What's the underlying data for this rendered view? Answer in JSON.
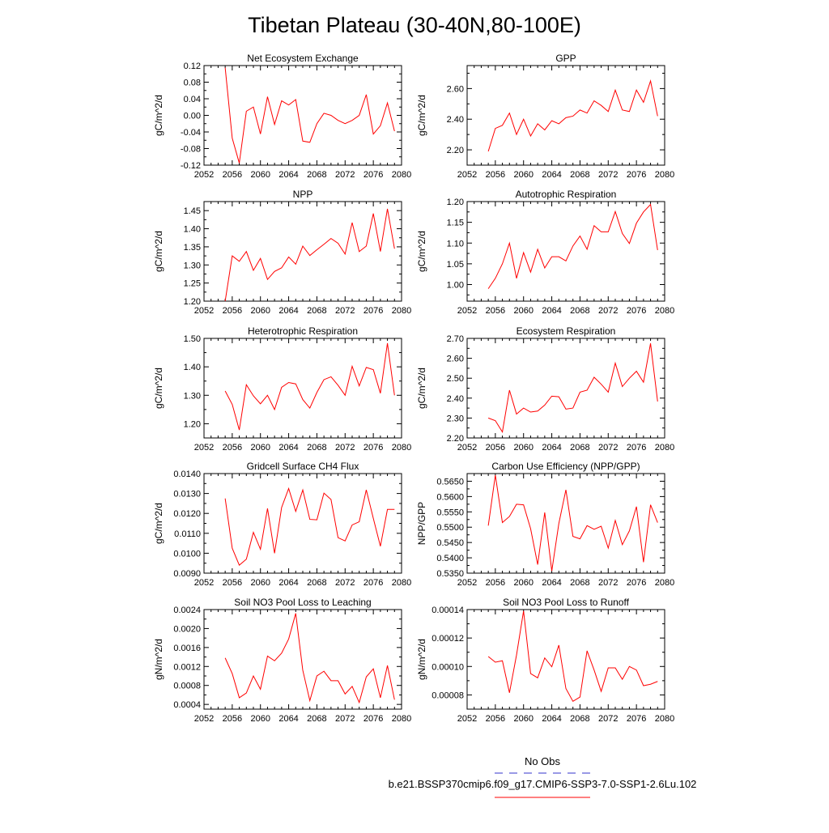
{
  "page": {
    "title": "Tibetan Plateau (30-40N,80-100E)"
  },
  "legend": {
    "entries": [
      {
        "label": "No Obs",
        "color": "#3333cc",
        "dash": "dashed"
      },
      {
        "label": "b.e21.BSSP370cmip6.f09_g17.CMIP6-SSP3-7.0-SSP1-2.6Lu.102",
        "color": "#ff0000",
        "dash": "solid"
      }
    ]
  },
  "chart_data": [
    {
      "type": "line",
      "title": "Net Ecosystem Exchange",
      "ylabel": "gC/m^2/d",
      "xlabel": "",
      "xlim": [
        2052,
        2080
      ],
      "ylim": [
        -0.12,
        0.12
      ],
      "xticks": [
        2052,
        2056,
        2060,
        2064,
        2068,
        2072,
        2076,
        2080
      ],
      "yticks": [
        -0.12,
        -0.08,
        -0.04,
        0.0,
        0.04,
        0.08,
        0.12
      ],
      "ytick_labels": [
        "-0.12",
        "-0.08",
        "-0.04",
        "0.00",
        "0.04",
        "0.08",
        "0.12"
      ],
      "series": [
        {
          "color": "#ff0000",
          "x": [
            2055,
            2056,
            2057,
            2058,
            2059,
            2060,
            2061,
            2062,
            2063,
            2064,
            2065,
            2066,
            2067,
            2068,
            2069,
            2070,
            2071,
            2072,
            2073,
            2074,
            2075,
            2076,
            2077,
            2078,
            2079
          ],
          "values": [
            0.115,
            -0.055,
            -0.115,
            0.01,
            0.02,
            -0.045,
            0.045,
            -0.022,
            0.035,
            0.025,
            0.038,
            -0.062,
            -0.065,
            -0.02,
            0.005,
            0.0,
            -0.012,
            -0.02,
            -0.012,
            0.0,
            0.05,
            -0.045,
            -0.025,
            0.03,
            -0.038
          ]
        }
      ]
    },
    {
      "type": "line",
      "title": "GPP",
      "ylabel": "gC/m^2/d",
      "xlabel": "",
      "xlim": [
        2052,
        2080
      ],
      "ylim": [
        2.1,
        2.75
      ],
      "xticks": [
        2052,
        2056,
        2060,
        2064,
        2068,
        2072,
        2076,
        2080
      ],
      "yticks": [
        2.2,
        2.4,
        2.6
      ],
      "ytick_labels": [
        "2.20",
        "2.40",
        "2.60"
      ],
      "series": [
        {
          "color": "#ff0000",
          "x": [
            2055,
            2056,
            2057,
            2058,
            2059,
            2060,
            2061,
            2062,
            2063,
            2064,
            2065,
            2066,
            2067,
            2068,
            2069,
            2070,
            2071,
            2072,
            2073,
            2074,
            2075,
            2076,
            2077,
            2078,
            2079
          ],
          "values": [
            2.19,
            2.34,
            2.36,
            2.44,
            2.3,
            2.4,
            2.29,
            2.37,
            2.33,
            2.39,
            2.37,
            2.41,
            2.42,
            2.46,
            2.44,
            2.52,
            2.49,
            2.45,
            2.59,
            2.46,
            2.45,
            2.59,
            2.51,
            2.65,
            2.42
          ]
        }
      ]
    },
    {
      "type": "line",
      "title": "NPP",
      "ylabel": "gC/m^2/d",
      "xlabel": "",
      "xlim": [
        2052,
        2080
      ],
      "ylim": [
        1.2,
        1.475
      ],
      "xticks": [
        2052,
        2056,
        2060,
        2064,
        2068,
        2072,
        2076,
        2080
      ],
      "yticks": [
        1.2,
        1.25,
        1.3,
        1.35,
        1.4,
        1.45
      ],
      "ytick_labels": [
        "1.20",
        "1.25",
        "1.30",
        "1.35",
        "1.40",
        "1.45"
      ],
      "series": [
        {
          "color": "#ff0000",
          "x": [
            2055,
            2056,
            2057,
            2058,
            2059,
            2060,
            2061,
            2062,
            2063,
            2064,
            2065,
            2066,
            2067,
            2068,
            2069,
            2070,
            2071,
            2072,
            2073,
            2074,
            2075,
            2076,
            2077,
            2078,
            2079
          ],
          "values": [
            1.2,
            1.325,
            1.31,
            1.337,
            1.285,
            1.318,
            1.26,
            1.282,
            1.292,
            1.322,
            1.302,
            1.352,
            1.326,
            1.342,
            1.357,
            1.373,
            1.36,
            1.33,
            1.417,
            1.337,
            1.352,
            1.442,
            1.337,
            1.455,
            1.345
          ]
        }
      ]
    },
    {
      "type": "line",
      "title": "Autotrophic Respiration",
      "ylabel": "gC/m^2/d",
      "xlabel": "",
      "xlim": [
        2052,
        2080
      ],
      "ylim": [
        0.96,
        1.2
      ],
      "xticks": [
        2052,
        2056,
        2060,
        2064,
        2068,
        2072,
        2076,
        2080
      ],
      "yticks": [
        1.0,
        1.05,
        1.1,
        1.15,
        1.2
      ],
      "ytick_labels": [
        "1.00",
        "1.05",
        "1.10",
        "1.15",
        "1.20"
      ],
      "series": [
        {
          "color": "#ff0000",
          "x": [
            2055,
            2056,
            2057,
            2058,
            2059,
            2060,
            2061,
            2062,
            2063,
            2064,
            2065,
            2066,
            2067,
            2068,
            2069,
            2070,
            2071,
            2072,
            2073,
            2074,
            2075,
            2076,
            2077,
            2078,
            2079
          ],
          "values": [
            0.99,
            1.015,
            1.05,
            1.1,
            1.015,
            1.077,
            1.03,
            1.085,
            1.04,
            1.067,
            1.067,
            1.057,
            1.093,
            1.117,
            1.085,
            1.142,
            1.127,
            1.127,
            1.176,
            1.123,
            1.099,
            1.148,
            1.175,
            1.193,
            1.083
          ]
        }
      ]
    },
    {
      "type": "line",
      "title": "Heterotrophic Respiration",
      "ylabel": "gC/m^2/d",
      "xlabel": "",
      "xlim": [
        2052,
        2080
      ],
      "ylim": [
        1.15,
        1.5
      ],
      "xticks": [
        2052,
        2056,
        2060,
        2064,
        2068,
        2072,
        2076,
        2080
      ],
      "yticks": [
        1.2,
        1.3,
        1.4,
        1.5
      ],
      "ytick_labels": [
        "1.20",
        "1.30",
        "1.40",
        "1.50"
      ],
      "series": [
        {
          "color": "#ff0000",
          "x": [
            2055,
            2056,
            2057,
            2058,
            2059,
            2060,
            2061,
            2062,
            2063,
            2064,
            2065,
            2066,
            2067,
            2068,
            2069,
            2070,
            2071,
            2072,
            2073,
            2074,
            2075,
            2076,
            2077,
            2078,
            2079
          ],
          "values": [
            1.315,
            1.268,
            1.178,
            1.337,
            1.298,
            1.27,
            1.3,
            1.25,
            1.328,
            1.345,
            1.34,
            1.285,
            1.255,
            1.31,
            1.355,
            1.365,
            1.335,
            1.3,
            1.402,
            1.333,
            1.398,
            1.39,
            1.307,
            1.483,
            1.3
          ]
        }
      ]
    },
    {
      "type": "line",
      "title": "Ecosystem Respiration",
      "ylabel": "gC/m^2/d",
      "xlabel": "",
      "xlim": [
        2052,
        2080
      ],
      "ylim": [
        2.2,
        2.7
      ],
      "xticks": [
        2052,
        2056,
        2060,
        2064,
        2068,
        2072,
        2076,
        2080
      ],
      "yticks": [
        2.2,
        2.3,
        2.4,
        2.5,
        2.6,
        2.7
      ],
      "ytick_labels": [
        "2.20",
        "2.30",
        "2.40",
        "2.50",
        "2.60",
        "2.70"
      ],
      "series": [
        {
          "color": "#ff0000",
          "x": [
            2055,
            2056,
            2057,
            2058,
            2059,
            2060,
            2061,
            2062,
            2063,
            2064,
            2065,
            2066,
            2067,
            2068,
            2069,
            2070,
            2071,
            2072,
            2073,
            2074,
            2075,
            2076,
            2077,
            2078,
            2079
          ],
          "values": [
            2.3,
            2.287,
            2.23,
            2.44,
            2.32,
            2.35,
            2.33,
            2.335,
            2.365,
            2.41,
            2.407,
            2.345,
            2.35,
            2.43,
            2.44,
            2.505,
            2.47,
            2.43,
            2.576,
            2.458,
            2.5,
            2.535,
            2.48,
            2.675,
            2.383
          ]
        }
      ]
    },
    {
      "type": "line",
      "title": "Gridcell Surface CH4 Flux",
      "ylabel": "gC/m^2/d",
      "xlabel": "",
      "xlim": [
        2052,
        2080
      ],
      "ylim": [
        0.009,
        0.014
      ],
      "xticks": [
        2052,
        2056,
        2060,
        2064,
        2068,
        2072,
        2076,
        2080
      ],
      "yticks": [
        0.009,
        0.01,
        0.011,
        0.012,
        0.013,
        0.014
      ],
      "ytick_labels": [
        "0.0090",
        "0.0100",
        "0.0110",
        "0.0120",
        "0.0130",
        "0.0140"
      ],
      "series": [
        {
          "color": "#ff0000",
          "x": [
            2055,
            2056,
            2057,
            2058,
            2059,
            2060,
            2061,
            2062,
            2063,
            2064,
            2065,
            2066,
            2067,
            2068,
            2069,
            2070,
            2071,
            2072,
            2073,
            2074,
            2075,
            2076,
            2077,
            2078,
            2079
          ],
          "values": [
            0.01275,
            0.01025,
            0.0094,
            0.0097,
            0.01105,
            0.0102,
            0.01225,
            0.01,
            0.0123,
            0.01325,
            0.0121,
            0.01318,
            0.0117,
            0.01168,
            0.01302,
            0.0127,
            0.01078,
            0.01062,
            0.01142,
            0.01158,
            0.01318,
            0.01175,
            0.01035,
            0.0122,
            0.0122
          ]
        }
      ]
    },
    {
      "type": "line",
      "title": "Carbon Use Efficiency (NPP/GPP)",
      "ylabel": "NPP/GPP",
      "xlabel": "",
      "xlim": [
        2052,
        2080
      ],
      "ylim": [
        0.535,
        0.5675
      ],
      "xticks": [
        2052,
        2056,
        2060,
        2064,
        2068,
        2072,
        2076,
        2080
      ],
      "yticks": [
        0.535,
        0.54,
        0.545,
        0.55,
        0.555,
        0.56,
        0.565
      ],
      "ytick_labels": [
        "0.5350",
        "0.5400",
        "0.5450",
        "0.5500",
        "0.5550",
        "0.5600",
        "0.5650"
      ],
      "series": [
        {
          "color": "#ff0000",
          "x": [
            2055,
            2056,
            2057,
            2058,
            2059,
            2060,
            2061,
            2062,
            2063,
            2064,
            2065,
            2066,
            2067,
            2068,
            2069,
            2070,
            2071,
            2072,
            2073,
            2074,
            2075,
            2076,
            2077,
            2078,
            2079
          ],
          "values": [
            0.5505,
            0.567,
            0.5515,
            0.5535,
            0.5575,
            0.5573,
            0.5495,
            0.5378,
            0.5548,
            0.5357,
            0.5512,
            0.5622,
            0.547,
            0.5462,
            0.5505,
            0.5493,
            0.5503,
            0.5432,
            0.5522,
            0.5443,
            0.5488,
            0.5567,
            0.5386,
            0.5573,
            0.5515
          ]
        }
      ]
    },
    {
      "type": "line",
      "title": "Soil NO3 Pool Loss to Leaching",
      "ylabel": "gN/m^2/d",
      "xlabel": "",
      "xlim": [
        2052,
        2080
      ],
      "ylim": [
        0.0003,
        0.0024
      ],
      "xticks": [
        2052,
        2056,
        2060,
        2064,
        2068,
        2072,
        2076,
        2080
      ],
      "yticks": [
        0.0004,
        0.0008,
        0.0012,
        0.0016,
        0.002,
        0.0024
      ],
      "ytick_labels": [
        "0.0004",
        "0.0008",
        "0.0012",
        "0.0016",
        "0.0020",
        "0.0024"
      ],
      "series": [
        {
          "color": "#ff0000",
          "x": [
            2055,
            2056,
            2057,
            2058,
            2059,
            2060,
            2061,
            2062,
            2063,
            2064,
            2065,
            2066,
            2067,
            2068,
            2069,
            2070,
            2071,
            2072,
            2073,
            2074,
            2075,
            2076,
            2077,
            2078,
            2079
          ],
          "values": [
            0.00138,
            0.00105,
            0.00054,
            0.00064,
            0.001,
            0.00072,
            0.00142,
            0.00132,
            0.00148,
            0.00178,
            0.00232,
            0.00112,
            0.00048,
            0.001,
            0.0011,
            0.0009,
            0.0009,
            0.00062,
            0.00078,
            0.00044,
            0.00098,
            0.00115,
            0.00054,
            0.00122,
            0.0005
          ]
        }
      ]
    },
    {
      "type": "line",
      "title": "Soil NO3 Pool Loss to Runoff",
      "ylabel": "gN/m^2/d",
      "xlabel": "",
      "xlim": [
        2052,
        2080
      ],
      "ylim": [
        7e-05,
        0.00014
      ],
      "xticks": [
        2052,
        2056,
        2060,
        2064,
        2068,
        2072,
        2076,
        2080
      ],
      "yticks": [
        8e-05,
        0.0001,
        0.00012,
        0.00014
      ],
      "ytick_labels": [
        "0.00008",
        "0.00010",
        "0.00012",
        "0.00014"
      ],
      "series": [
        {
          "color": "#ff0000",
          "x": [
            2055,
            2056,
            2057,
            2058,
            2059,
            2060,
            2061,
            2062,
            2063,
            2064,
            2065,
            2066,
            2067,
            2068,
            2069,
            2070,
            2071,
            2072,
            2073,
            2074,
            2075,
            2076,
            2077,
            2078,
            2079
          ],
          "values": [
            0.000107,
            0.000103,
            0.000104,
            8.15e-05,
            0.000108,
            0.000139,
            9.5e-05,
            9.2e-05,
            0.000106,
            9.98e-05,
            0.000115,
            8.45e-05,
            7.55e-05,
            7.85e-05,
            0.000111,
            9.75e-05,
            8.25e-05,
            9.9e-05,
            9.9e-05,
            9.1e-05,
            0.0001,
            9.75e-05,
            8.65e-05,
            8.75e-05,
            8.95e-05
          ]
        }
      ]
    }
  ]
}
